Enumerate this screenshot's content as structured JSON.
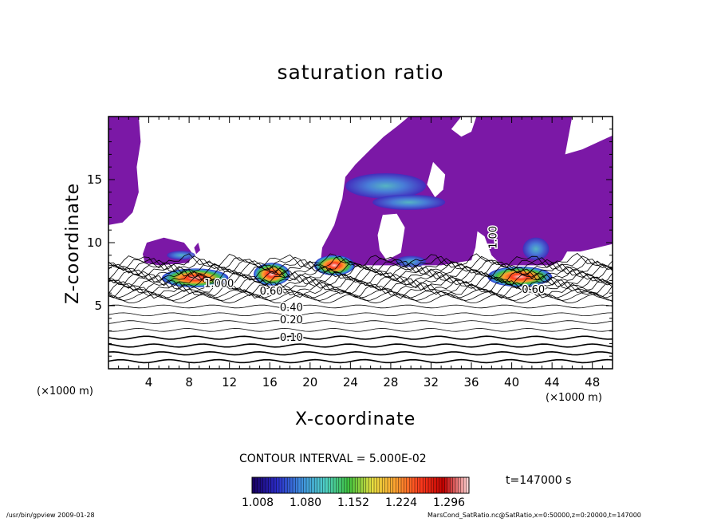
{
  "chart_data": {
    "type": "heatmap",
    "title": "saturation ratio",
    "xlabel": "X-coordinate",
    "ylabel": "Z-coordinate",
    "x_unit_left": "(×1000 m)",
    "x_unit_right": "(×1000 m)",
    "xlim": [
      0,
      50
    ],
    "ylim": [
      0,
      20
    ],
    "xticks": [
      "4",
      "8",
      "12",
      "16",
      "20",
      "24",
      "28",
      "32",
      "36",
      "40",
      "44",
      "48"
    ],
    "yticks": [
      "5",
      "10",
      "15"
    ],
    "contour_interval_text": "CONTOUR INTERVAL = 5.000E-02",
    "contour_labels": [
      {
        "text": "0.10",
        "x": 17,
        "z": 2.2
      },
      {
        "text": "0.20",
        "x": 17,
        "z": 3.6
      },
      {
        "text": "0.40",
        "x": 17,
        "z": 4.6
      },
      {
        "text": "0.60",
        "x": 15,
        "z": 5.9
      },
      {
        "text": "1.000",
        "x": 9.5,
        "z": 6.5
      },
      {
        "text": "0.60",
        "x": 41,
        "z": 6.0
      },
      {
        "text": "1.00",
        "x": 38.5,
        "z": 9.5
      }
    ],
    "colorbar": {
      "ticks": [
        "1.008",
        "1.080",
        "1.152",
        "1.224",
        "1.296"
      ],
      "min": 1.008,
      "max": 1.296,
      "colors": [
        "#1a0066",
        "#2a2cc8",
        "#3f8fe0",
        "#4fd0c8",
        "#3fc23f",
        "#e8e040",
        "#ffa030",
        "#ff3c1e",
        "#c00000",
        "#ffd0d0"
      ]
    },
    "saturated_color": "#7b18a6",
    "time_label": "t=147000 s"
  },
  "footer": {
    "left": "/usr/bin/gpview   2009-01-28",
    "right": "MarsCond_SatRatio.nc@SatRatio,x=0:50000,z=0:20000,t=147000"
  }
}
